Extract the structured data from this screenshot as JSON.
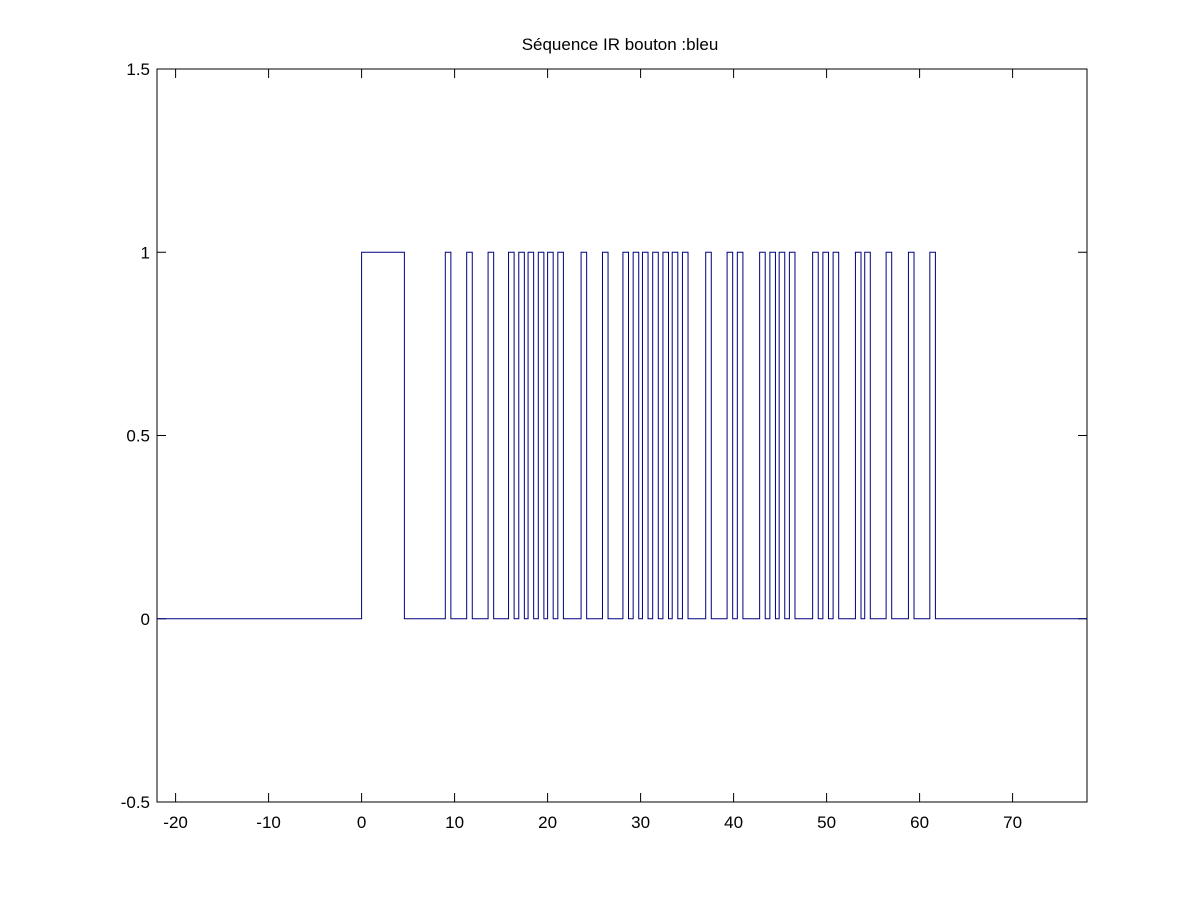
{
  "chart_data": {
    "type": "line",
    "step": true,
    "title": "Séquence IR bouton :bleu",
    "xlabel": "",
    "ylabel": "",
    "xlim": [
      -22,
      78
    ],
    "ylim": [
      -0.5,
      1.5
    ],
    "xticks": [
      -20,
      -10,
      0,
      10,
      20,
      30,
      40,
      50,
      60,
      70
    ],
    "xtick_labels": [
      "-20",
      "-10",
      "0",
      "10",
      "20",
      "30",
      "40",
      "50",
      "60",
      "70"
    ],
    "yticks": [
      -0.5,
      0,
      0.5,
      1,
      1.5
    ],
    "ytick_labels": [
      "-0.5",
      "0",
      "0.5",
      "1",
      "1.5"
    ],
    "grid": false,
    "box": true,
    "series": [
      {
        "color": "#00007f",
        "baseline": 0,
        "high": 1,
        "x_start": -22,
        "x_end": 78,
        "pulses": [
          [
            0.0,
            4.6
          ],
          [
            9.0,
            9.6
          ],
          [
            11.3,
            11.9
          ],
          [
            13.6,
            14.2
          ],
          [
            15.8,
            16.4
          ],
          [
            16.9,
            17.5
          ],
          [
            17.9,
            18.5
          ],
          [
            19.0,
            19.6
          ],
          [
            20.0,
            20.6
          ],
          [
            21.1,
            21.7
          ],
          [
            23.6,
            24.2
          ],
          [
            25.9,
            26.5
          ],
          [
            28.1,
            28.7
          ],
          [
            29.2,
            29.8
          ],
          [
            30.2,
            30.8
          ],
          [
            31.3,
            31.9
          ],
          [
            32.4,
            33.0
          ],
          [
            33.4,
            34.0
          ],
          [
            34.5,
            35.1
          ],
          [
            37.0,
            37.6
          ],
          [
            39.3,
            39.9
          ],
          [
            40.4,
            41.0
          ],
          [
            42.8,
            43.4
          ],
          [
            43.9,
            44.5
          ],
          [
            44.9,
            45.5
          ],
          [
            46.0,
            46.6
          ],
          [
            48.5,
            49.1
          ],
          [
            49.6,
            50.2
          ],
          [
            50.7,
            51.3
          ],
          [
            53.1,
            53.7
          ],
          [
            54.1,
            54.7
          ],
          [
            56.4,
            57.0
          ],
          [
            58.8,
            59.4
          ],
          [
            61.1,
            61.7
          ]
        ]
      }
    ]
  }
}
